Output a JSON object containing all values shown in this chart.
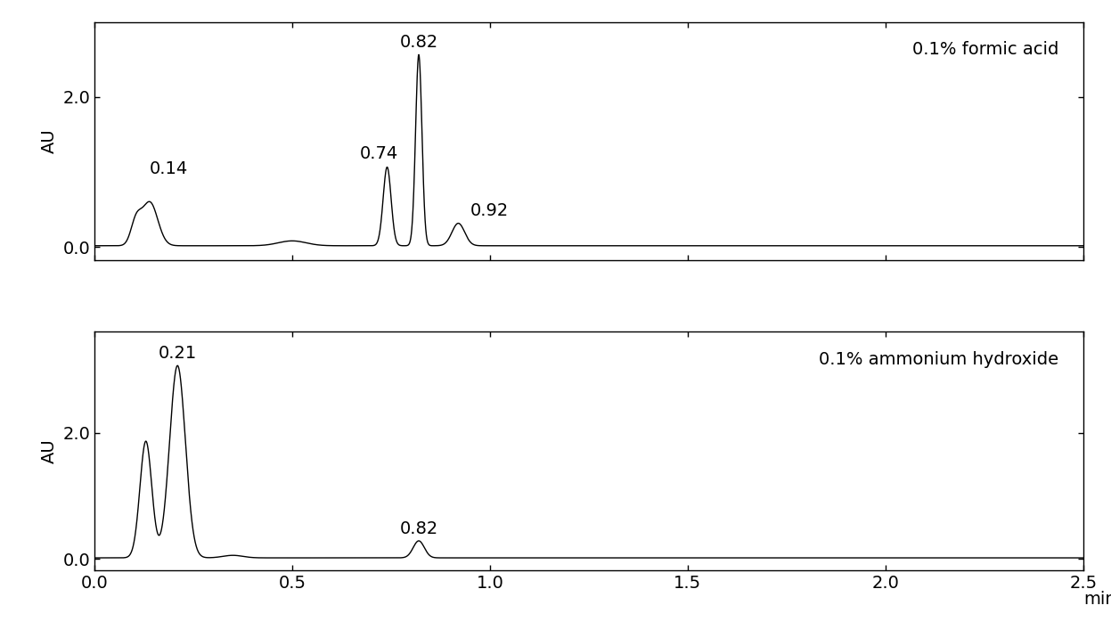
{
  "title1": "0.1% formic acid",
  "title2": "0.1% ammonium hydroxide",
  "ylabel": "AU",
  "xlabel": "min",
  "xlim": [
    0.0,
    2.5
  ],
  "xticks": [
    0.0,
    0.5,
    1.0,
    1.5,
    2.0,
    2.5
  ],
  "xtick_labels": [
    "0.0",
    "0.5",
    "1.0",
    "1.5",
    "2.0",
    "2.5"
  ],
  "ylim1": [
    -0.18,
    3.0
  ],
  "ylim2": [
    -0.18,
    3.6
  ],
  "yticks1": [
    0.0,
    2.0
  ],
  "yticks2": [
    0.0,
    2.0
  ],
  "background_color": "#ffffff",
  "line_color": "#000000",
  "font_size": 14,
  "label_font_size": 14
}
